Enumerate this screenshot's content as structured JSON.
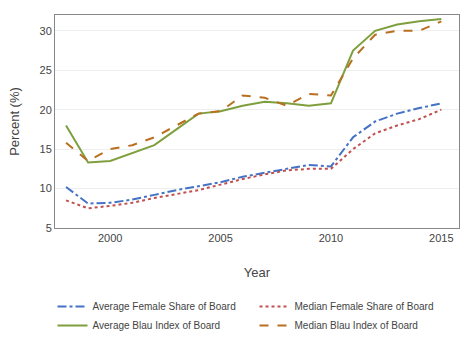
{
  "chart_data": {
    "type": "line",
    "x": [
      1998,
      1999,
      2000,
      2001,
      2002,
      2003,
      2004,
      2005,
      2006,
      2007,
      2008,
      2009,
      2010,
      2011,
      2012,
      2013,
      2014,
      2015
    ],
    "series": [
      {
        "name": "Average Female Share of Board",
        "color": "#4472C4",
        "line_style": "dashdot",
        "values": [
          10.2,
          8.1,
          8.2,
          8.6,
          9.2,
          9.8,
          10.3,
          10.8,
          11.5,
          12.0,
          12.5,
          13.0,
          12.8,
          16.5,
          18.5,
          19.5,
          20.2,
          20.8
        ]
      },
      {
        "name": "Median Female Share of Board",
        "color": "#C0504D",
        "line_style": "dot",
        "values": [
          8.5,
          7.5,
          7.8,
          8.2,
          8.8,
          9.3,
          9.8,
          10.5,
          11.2,
          11.8,
          12.3,
          12.5,
          12.5,
          15.0,
          17.0,
          18.0,
          18.8,
          20.0
        ]
      },
      {
        "name": "Average Blau Index of Board",
        "color": "#7F9F3F",
        "line_style": "solid",
        "values": [
          18.0,
          13.3,
          13.5,
          14.5,
          15.5,
          17.5,
          19.5,
          19.8,
          20.5,
          21.0,
          20.8,
          20.5,
          20.8,
          27.5,
          30.0,
          30.8,
          31.2,
          31.5
        ]
      },
      {
        "name": "Median Blau Index of Board",
        "color": "#B87020",
        "line_style": "dash",
        "values": [
          15.8,
          13.5,
          15.0,
          15.5,
          16.5,
          18.0,
          19.5,
          19.8,
          21.8,
          21.5,
          20.5,
          22.0,
          21.8,
          26.5,
          29.5,
          30.0,
          30.0,
          31.2
        ]
      }
    ],
    "x_label": "Year",
    "y_label": "Percent (%)",
    "xlim": [
      1997.5,
      2015.8
    ],
    "xticks": [
      2000,
      2005,
      2010,
      2015
    ],
    "ylim": [
      5,
      32
    ],
    "yticks": [
      5,
      10,
      15,
      20,
      25,
      30
    ],
    "grid": "y",
    "legend": "bottom"
  }
}
